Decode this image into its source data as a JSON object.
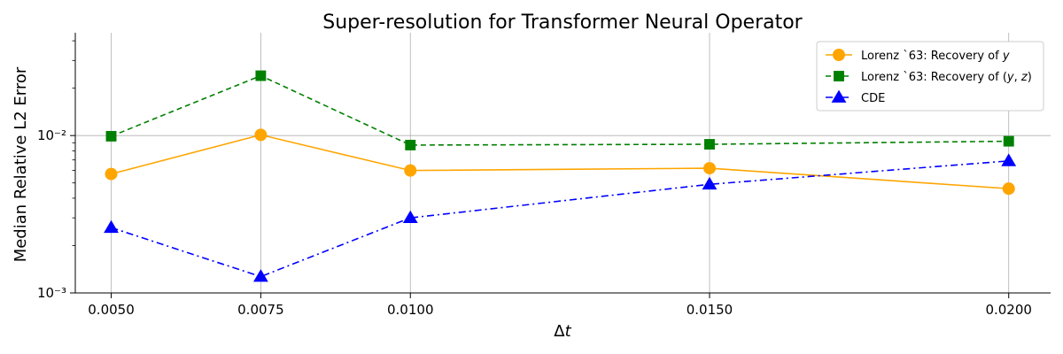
{
  "chart_data": {
    "type": "line",
    "title": "Super-resolution for Transformer Neural Operator",
    "xlabel": "Δt",
    "ylabel": "Median Relative L2 Error",
    "y_scale": "log",
    "ylim": [
      0.001,
      0.045
    ],
    "x": [
      0.005,
      0.0075,
      0.01,
      0.015,
      0.02
    ],
    "x_tick_labels": [
      "0.0050",
      "0.0075",
      "0.0100",
      "0.0150",
      "0.0200"
    ],
    "y_tick_labels": [
      {
        "value": 0.001,
        "label": "10⁻³"
      },
      {
        "value": 0.01,
        "label": "10⁻²"
      }
    ],
    "grid": true,
    "legend_position": "top-right",
    "series": [
      {
        "name": "Lorenz `63: Recovery of y",
        "values": [
          0.0057,
          0.0101,
          0.006,
          0.0062,
          0.0046
        ],
        "color": "#ffa500",
        "marker": "circle",
        "dash": "solid"
      },
      {
        "name": "Lorenz `63: Recovery of (y, z)",
        "values": [
          0.0099,
          0.024,
          0.0087,
          0.0088,
          0.0092
        ],
        "color": "#008000",
        "marker": "square",
        "dash": "dashed"
      },
      {
        "name": "CDE",
        "values": [
          0.0026,
          0.00127,
          0.003,
          0.0049,
          0.0069
        ],
        "color": "#0000ff",
        "marker": "triangle",
        "dash": "dashdot"
      }
    ]
  }
}
